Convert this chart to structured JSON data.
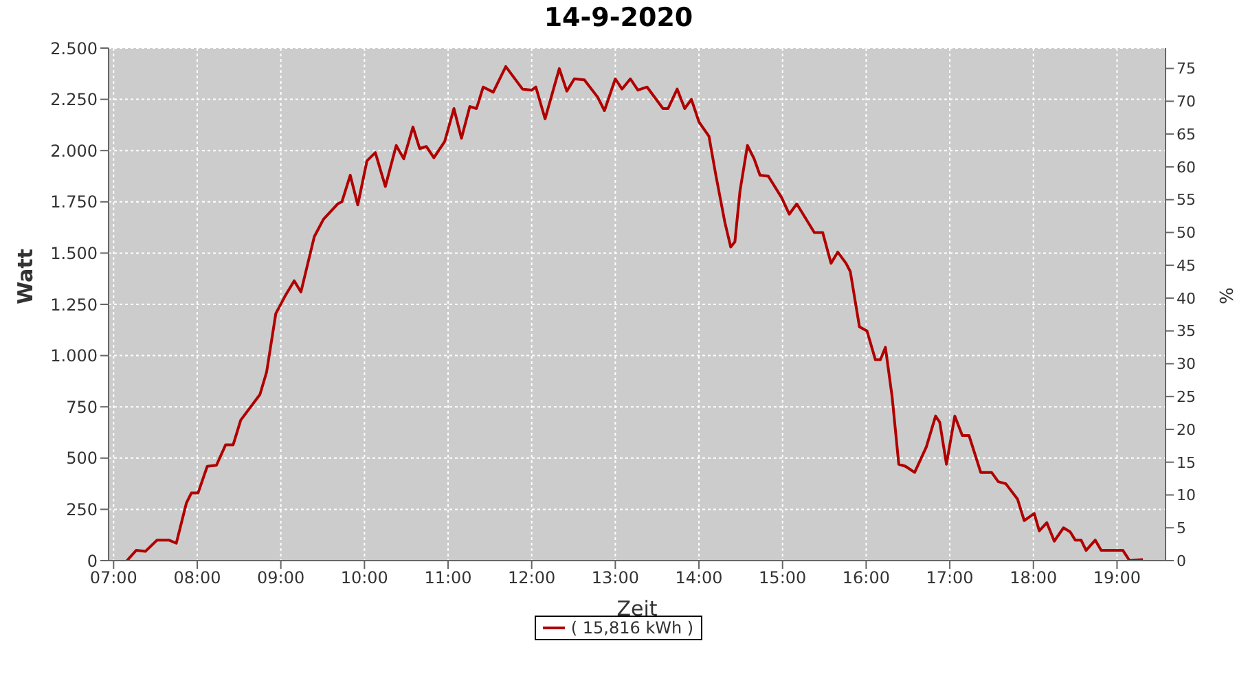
{
  "chart_data": {
    "type": "line",
    "title": "14-9-2020",
    "xlabel": "Zeit",
    "ylabel": "Watt",
    "y2label": "%",
    "xlim": [
      6.94,
      19.58
    ],
    "xticks": [
      {
        "value": 7,
        "label": "07:00"
      },
      {
        "value": 8,
        "label": "08:00"
      },
      {
        "value": 9,
        "label": "09:00"
      },
      {
        "value": 10,
        "label": "10:00"
      },
      {
        "value": 11,
        "label": "11:00"
      },
      {
        "value": 12,
        "label": "12:00"
      },
      {
        "value": 13,
        "label": "13:00"
      },
      {
        "value": 14,
        "label": "14:00"
      },
      {
        "value": 15,
        "label": "15:00"
      },
      {
        "value": 16,
        "label": "16:00"
      },
      {
        "value": 17,
        "label": "17:00"
      },
      {
        "value": 18,
        "label": "18:00"
      },
      {
        "value": 19,
        "label": "19:00"
      }
    ],
    "ylim": [
      0,
      2500
    ],
    "yticks": [
      0,
      250,
      500,
      750,
      {
        "value": 1000,
        "label": "1.000"
      },
      {
        "value": 1250,
        "label": "1.250"
      },
      {
        "value": 1500,
        "label": "1.500"
      },
      {
        "value": 1750,
        "label": "1.750"
      },
      {
        "value": 2000,
        "label": "2.000"
      },
      {
        "value": 2250,
        "label": "2.250"
      },
      {
        "value": 2500,
        "label": "2.500"
      }
    ],
    "y2lim": [
      0,
      78.1
    ],
    "y2ticks": [
      0,
      5,
      10,
      15,
      20,
      25,
      30,
      35,
      40,
      45,
      50,
      55,
      60,
      65,
      70,
      75
    ],
    "grid": true,
    "legend": "bottom",
    "series": [
      {
        "name": "( 15,816 kWh )",
        "color": "#b00000",
        "x": [
          7.16,
          7.27,
          7.38,
          7.52,
          7.66,
          7.75,
          7.87,
          7.93,
          8.01,
          8.12,
          8.23,
          8.34,
          8.43,
          8.52,
          8.75,
          8.83,
          8.94,
          9.05,
          9.16,
          9.24,
          9.4,
          9.51,
          9.68,
          9.73,
          9.83,
          9.92,
          10.03,
          10.13,
          10.25,
          10.38,
          10.47,
          10.58,
          10.66,
          10.74,
          10.83,
          10.96,
          11.07,
          11.16,
          11.26,
          11.34,
          11.42,
          11.54,
          11.69,
          11.89,
          12.0,
          12.05,
          12.16,
          12.33,
          12.42,
          12.51,
          12.63,
          12.79,
          12.87,
          13.0,
          13.08,
          13.18,
          13.27,
          13.38,
          13.57,
          13.63,
          13.74,
          13.83,
          13.91,
          14.0,
          14.12,
          14.2,
          14.31,
          14.38,
          14.43,
          14.49,
          14.58,
          14.66,
          14.73,
          14.83,
          14.99,
          15.08,
          15.17,
          15.38,
          15.48,
          15.58,
          15.66,
          15.76,
          15.81,
          15.92,
          16.01,
          16.11,
          16.17,
          16.23,
          16.31,
          16.39,
          16.47,
          16.58,
          16.72,
          16.83,
          16.88,
          16.96,
          17.06,
          17.15,
          17.23,
          17.37,
          17.5,
          17.58,
          17.67,
          17.81,
          17.89,
          18.01,
          18.07,
          18.16,
          18.25,
          18.36,
          18.44,
          18.5,
          18.57,
          18.63,
          18.74,
          18.81,
          19.07,
          19.15,
          19.31
        ],
        "values": [
          0,
          50,
          45,
          100,
          100,
          85,
          280,
          330,
          330,
          460,
          465,
          565,
          565,
          685,
          810,
          920,
          1205,
          1290,
          1365,
          1310,
          1580,
          1665,
          1740,
          1750,
          1880,
          1735,
          1950,
          1990,
          1825,
          2025,
          1960,
          2115,
          2010,
          2020,
          1965,
          2045,
          2205,
          2060,
          2215,
          2205,
          2310,
          2285,
          2410,
          2300,
          2295,
          2310,
          2155,
          2400,
          2290,
          2350,
          2345,
          2260,
          2195,
          2350,
          2300,
          2350,
          2295,
          2310,
          2205,
          2205,
          2300,
          2205,
          2250,
          2140,
          2070,
          1885,
          1650,
          1530,
          1555,
          1800,
          2025,
          1960,
          1880,
          1875,
          1770,
          1690,
          1740,
          1600,
          1600,
          1450,
          1505,
          1450,
          1410,
          1140,
          1120,
          980,
          980,
          1040,
          800,
          470,
          460,
          430,
          555,
          705,
          675,
          470,
          705,
          610,
          610,
          430,
          430,
          385,
          375,
          300,
          195,
          230,
          145,
          185,
          95,
          160,
          140,
          100,
          100,
          50,
          100,
          50,
          50,
          0,
          5
        ]
      }
    ]
  }
}
